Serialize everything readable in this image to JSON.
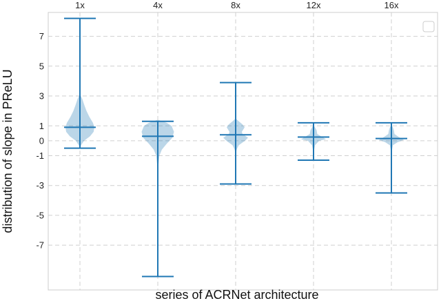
{
  "chart_data": {
    "type": "violin",
    "xlabel": "series of ACRNet architecture",
    "ylabel": "distribution of slope in PReLU",
    "ylim": [
      -10,
      8.6
    ],
    "yticks": [
      {
        "value": 7,
        "label": "7"
      },
      {
        "value": 5,
        "label": "5"
      },
      {
        "value": 3,
        "label": "3"
      },
      {
        "value": 1,
        "label": "1"
      },
      {
        "value": 0,
        "label": "0"
      },
      {
        "value": -1,
        "label": "-1"
      },
      {
        "value": -3,
        "label": "-3"
      },
      {
        "value": -5,
        "label": "-5"
      },
      {
        "value": -7,
        "label": "-7"
      }
    ],
    "categories": [
      "1x",
      "4x",
      "8x",
      "12x",
      "16x"
    ],
    "color": "#1f77b4",
    "grid": true,
    "legend": {
      "placement": "top-right",
      "entries": []
    },
    "series": [
      {
        "name": "1x",
        "min": -0.5,
        "max": 8.2,
        "mean": 0.9,
        "halfwidth": 0.42,
        "profile": [
          [
            -0.5,
            0.0
          ],
          [
            -0.3,
            0.08
          ],
          [
            0.0,
            0.28
          ],
          [
            0.3,
            0.7
          ],
          [
            0.6,
            0.95
          ],
          [
            0.9,
            1.0
          ],
          [
            1.2,
            0.9
          ],
          [
            1.6,
            0.65
          ],
          [
            2.0,
            0.45
          ],
          [
            2.4,
            0.3
          ],
          [
            2.8,
            0.16
          ],
          [
            3.0,
            0.06
          ],
          [
            3.2,
            0.0
          ]
        ]
      },
      {
        "name": "4x",
        "min": -9.1,
        "max": 1.3,
        "mean": 0.3,
        "halfwidth": 0.47,
        "profile": [
          [
            -2.2,
            0.0
          ],
          [
            -1.6,
            0.04
          ],
          [
            -1.0,
            0.1
          ],
          [
            -0.6,
            0.25
          ],
          [
            -0.2,
            0.55
          ],
          [
            0.2,
            0.9
          ],
          [
            0.6,
            1.0
          ],
          [
            1.0,
            0.85
          ],
          [
            1.2,
            0.55
          ],
          [
            1.3,
            0.3
          ],
          [
            1.4,
            0.0
          ]
        ]
      },
      {
        "name": "8x",
        "min": -2.9,
        "max": 3.9,
        "mean": 0.4,
        "halfwidth": 0.36,
        "profile": [
          [
            -1.0,
            0.0
          ],
          [
            -0.6,
            0.08
          ],
          [
            -0.3,
            0.25
          ],
          [
            0.0,
            0.75
          ],
          [
            0.2,
            1.0
          ],
          [
            0.45,
            0.55
          ],
          [
            0.6,
            0.5
          ],
          [
            0.9,
            0.72
          ],
          [
            1.1,
            0.55
          ],
          [
            1.3,
            0.25
          ],
          [
            1.5,
            0.0
          ]
        ]
      },
      {
        "name": "12x",
        "min": -1.3,
        "max": 1.2,
        "mean": 0.25,
        "halfwidth": 0.36,
        "profile": [
          [
            -0.9,
            0.0
          ],
          [
            -0.6,
            0.05
          ],
          [
            -0.3,
            0.12
          ],
          [
            0.0,
            0.45
          ],
          [
            0.1,
            1.0
          ],
          [
            0.25,
            0.7
          ],
          [
            0.45,
            0.3
          ],
          [
            0.7,
            0.25
          ],
          [
            0.85,
            0.15
          ],
          [
            1.05,
            0.0
          ]
        ]
      },
      {
        "name": "16x",
        "min": -3.5,
        "max": 1.2,
        "mean": 0.15,
        "halfwidth": 0.36,
        "profile": [
          [
            -0.9,
            0.0
          ],
          [
            -0.6,
            0.05
          ],
          [
            -0.3,
            0.12
          ],
          [
            -0.1,
            0.5
          ],
          [
            0.05,
            1.0
          ],
          [
            0.25,
            0.6
          ],
          [
            0.45,
            0.25
          ],
          [
            0.7,
            0.2
          ],
          [
            0.9,
            0.12
          ],
          [
            1.05,
            0.0
          ]
        ]
      }
    ]
  }
}
